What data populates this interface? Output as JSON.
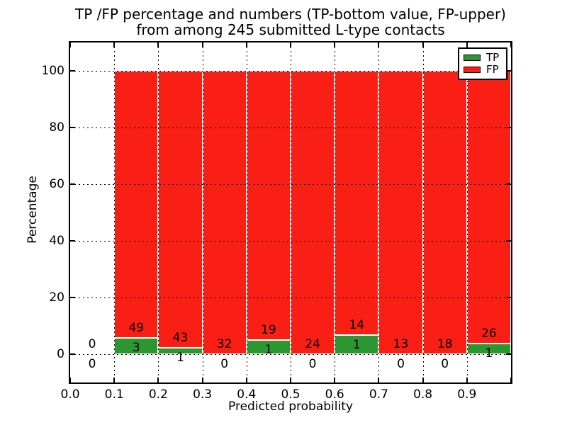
{
  "title": {
    "line1": "TP /FP percentage and numbers (TP-bottom value, FP-upper)",
    "line2": "from among 245 submitted L-type contacts"
  },
  "axes": {
    "xlabel": "Predicted probability",
    "ylabel": "Percentage",
    "xtick_labels": [
      "0.0",
      "0.1",
      "0.2",
      "0.3",
      "0.4",
      "0.5",
      "0.6",
      "0.7",
      "0.8",
      "0.9"
    ],
    "ytick_labels": [
      "0",
      "20",
      "40",
      "60",
      "80",
      "100"
    ],
    "ytick_values": [
      0,
      20,
      40,
      60,
      80,
      100
    ]
  },
  "colors": {
    "tp_green": "#2c9631",
    "fp_red": "#fa1f14",
    "bar_edge": "#ffffff",
    "grid": "#000000"
  },
  "legend": {
    "items": [
      {
        "label": "TP",
        "color": "#2c9631"
      },
      {
        "label": "FP",
        "color": "#fa1f14"
      }
    ]
  },
  "chart_data": {
    "type": "bar",
    "stacked": true,
    "title": "TP /FP percentage and numbers (TP-bottom value, FP-upper) from among 245 submitted L-type contacts",
    "xlabel": "Predicted probability",
    "ylabel": "Percentage",
    "xlim": [
      0.0,
      1.0
    ],
    "ylim": [
      -10,
      110
    ],
    "grid": "dotted, drawn above bars",
    "legend_position": "upper right",
    "total_contacts": 245,
    "bin_width": 0.1,
    "categories": [
      "0.0-0.1",
      "0.1-0.2",
      "0.2-0.3",
      "0.3-0.4",
      "0.4-0.5",
      "0.5-0.6",
      "0.6-0.7",
      "0.7-0.8",
      "0.8-0.9",
      "0.9-1.0"
    ],
    "series": [
      {
        "name": "TP",
        "counts": [
          0,
          3,
          1,
          0,
          1,
          0,
          1,
          0,
          0,
          1
        ],
        "pct": [
          0,
          5.77,
          2.27,
          0,
          5.0,
          0,
          6.67,
          0,
          0,
          3.7
        ]
      },
      {
        "name": "FP",
        "counts": [
          0,
          49,
          43,
          32,
          19,
          24,
          14,
          13,
          18,
          26
        ],
        "pct": [
          0,
          94.23,
          97.73,
          100,
          95.0,
          100,
          93.33,
          100,
          100,
          96.3
        ]
      }
    ],
    "bins": [
      {
        "x0": 0.0,
        "tp": 0,
        "fp": 0,
        "tp_pct": 0,
        "has_bar": false,
        "fp_label": "0",
        "tp_label": "0"
      },
      {
        "x0": 0.1,
        "tp": 3,
        "fp": 49,
        "tp_pct": 5.77,
        "has_bar": true,
        "fp_label": "49",
        "tp_label": "3"
      },
      {
        "x0": 0.2,
        "tp": 1,
        "fp": 43,
        "tp_pct": 2.27,
        "has_bar": true,
        "fp_label": "43",
        "tp_label": "1"
      },
      {
        "x0": 0.3,
        "tp": 0,
        "fp": 32,
        "tp_pct": 0,
        "has_bar": true,
        "fp_label": "32",
        "tp_label": "0"
      },
      {
        "x0": 0.4,
        "tp": 1,
        "fp": 19,
        "tp_pct": 5.0,
        "has_bar": true,
        "fp_label": "19",
        "tp_label": "1"
      },
      {
        "x0": 0.5,
        "tp": 0,
        "fp": 24,
        "tp_pct": 0,
        "has_bar": true,
        "fp_label": "24",
        "tp_label": "0"
      },
      {
        "x0": 0.6,
        "tp": 1,
        "fp": 14,
        "tp_pct": 6.67,
        "has_bar": true,
        "fp_label": "14",
        "tp_label": "1"
      },
      {
        "x0": 0.7,
        "tp": 0,
        "fp": 13,
        "tp_pct": 0,
        "has_bar": true,
        "fp_label": "13",
        "tp_label": "0"
      },
      {
        "x0": 0.8,
        "tp": 0,
        "fp": 18,
        "tp_pct": 0,
        "has_bar": true,
        "fp_label": "18",
        "tp_label": "0"
      },
      {
        "x0": 0.9,
        "tp": 1,
        "fp": 26,
        "tp_pct": 3.7,
        "has_bar": true,
        "fp_label": "26",
        "tp_label": "1"
      }
    ]
  }
}
